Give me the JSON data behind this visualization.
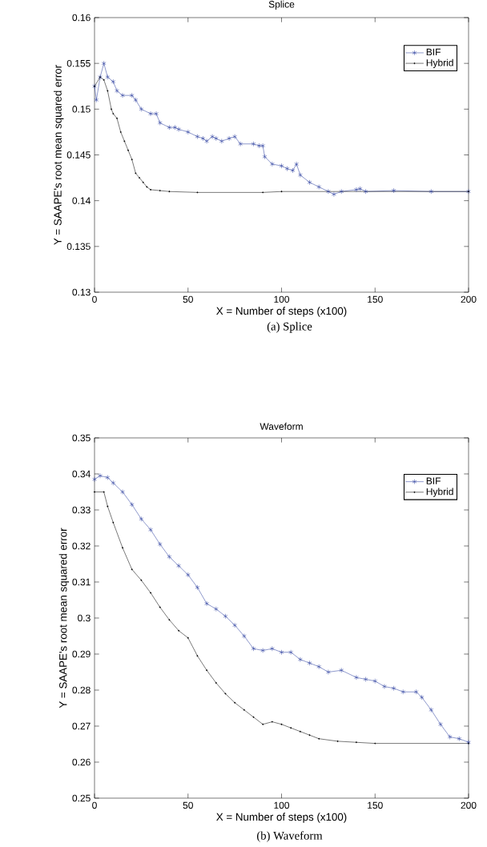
{
  "chart_data": [
    {
      "type": "line",
      "title": "Splice",
      "xlabel": "X = Number of steps (x100)",
      "ylabel": "Y = SAAPE's root mean squared error",
      "annotations": [
        "(a) Splice"
      ],
      "xlim": [
        0,
        200
      ],
      "ylim": [
        0.13,
        0.16
      ],
      "xticks": [
        0,
        50,
        100,
        150,
        200
      ],
      "yticks": [
        0.13,
        0.135,
        0.14,
        0.145,
        0.15,
        0.155,
        0.16
      ],
      "legend": "top right",
      "line_style": "solid",
      "series": [
        {
          "name": "BIF",
          "color": "#2b3f9e",
          "marker": "cross",
          "x": [
            0,
            1,
            3,
            5,
            7,
            10,
            12,
            15,
            20,
            22,
            25,
            30,
            33,
            35,
            40,
            43,
            45,
            50,
            55,
            58,
            60,
            63,
            65,
            68,
            72,
            75,
            78,
            85,
            88,
            90,
            91,
            95,
            100,
            103,
            106,
            108,
            110,
            115,
            120,
            125,
            128,
            132,
            140,
            142,
            145,
            160,
            180,
            200
          ],
          "values": [
            0.1525,
            0.151,
            0.1535,
            0.155,
            0.1535,
            0.153,
            0.152,
            0.1515,
            0.1515,
            0.151,
            0.15,
            0.1495,
            0.1495,
            0.1485,
            0.148,
            0.148,
            0.1478,
            0.1475,
            0.147,
            0.1468,
            0.1465,
            0.147,
            0.1468,
            0.1465,
            0.1468,
            0.147,
            0.1462,
            0.1462,
            0.146,
            0.146,
            0.1448,
            0.144,
            0.1438,
            0.1435,
            0.1433,
            0.144,
            0.1428,
            0.142,
            0.1415,
            0.141,
            0.1407,
            0.141,
            0.1412,
            0.1413,
            0.141,
            0.1411,
            0.141,
            0.141
          ]
        },
        {
          "name": "Hybrid",
          "color": "#000000",
          "marker": "circle",
          "x": [
            0,
            3,
            5,
            7,
            9,
            10,
            12,
            14,
            16,
            18,
            20,
            22,
            24,
            26,
            28,
            30,
            35,
            40,
            55,
            90,
            100,
            200
          ],
          "values": [
            0.1525,
            0.1535,
            0.1532,
            0.152,
            0.15,
            0.1495,
            0.149,
            0.1475,
            0.1465,
            0.1455,
            0.1445,
            0.143,
            0.1425,
            0.142,
            0.1415,
            0.1412,
            0.1411,
            0.141,
            0.1409,
            0.1409,
            0.141,
            0.141
          ]
        }
      ]
    },
    {
      "type": "line",
      "title": "Waveform",
      "xlabel": "X = Number of steps (x100)",
      "ylabel": "Y = SAAPE's root mean squared error",
      "annotations": [
        "(b) Waveform"
      ],
      "xlim": [
        0,
        200
      ],
      "ylim": [
        0.25,
        0.35
      ],
      "xticks": [
        0,
        50,
        100,
        150,
        200
      ],
      "yticks": [
        0.25,
        0.26,
        0.27,
        0.28,
        0.29,
        0.3,
        0.31,
        0.32,
        0.33,
        0.34,
        0.35
      ],
      "legend": "top right",
      "line_style": "solid",
      "series": [
        {
          "name": "BIF",
          "color": "#2b3f9e",
          "marker": "cross",
          "x": [
            0,
            3,
            7,
            10,
            15,
            20,
            25,
            30,
            35,
            40,
            45,
            50,
            55,
            60,
            65,
            70,
            75,
            80,
            85,
            90,
            95,
            100,
            105,
            110,
            115,
            120,
            125,
            132,
            140,
            145,
            150,
            155,
            160,
            165,
            172,
            175,
            180,
            185,
            190,
            195,
            200
          ],
          "values": [
            0.3385,
            0.3395,
            0.339,
            0.3375,
            0.335,
            0.3315,
            0.3275,
            0.3245,
            0.3205,
            0.317,
            0.3145,
            0.312,
            0.3085,
            0.304,
            0.3025,
            0.3005,
            0.298,
            0.295,
            0.2915,
            0.291,
            0.2915,
            0.2905,
            0.2905,
            0.2885,
            0.2875,
            0.2865,
            0.285,
            0.2855,
            0.2835,
            0.283,
            0.2825,
            0.281,
            0.2805,
            0.2795,
            0.2795,
            0.278,
            0.2745,
            0.2705,
            0.267,
            0.2665,
            0.2655
          ]
        },
        {
          "name": "Hybrid",
          "color": "#000000",
          "marker": "circle",
          "x": [
            0,
            5,
            7,
            10,
            15,
            20,
            25,
            30,
            35,
            40,
            45,
            50,
            55,
            60,
            65,
            70,
            75,
            80,
            85,
            90,
            95,
            100,
            105,
            110,
            115,
            120,
            130,
            140,
            150,
            200
          ],
          "values": [
            0.335,
            0.335,
            0.331,
            0.3265,
            0.3195,
            0.3135,
            0.3105,
            0.307,
            0.303,
            0.2995,
            0.2965,
            0.2945,
            0.2895,
            0.2855,
            0.282,
            0.279,
            0.2765,
            0.2745,
            0.2725,
            0.2705,
            0.2712,
            0.2705,
            0.2695,
            0.2685,
            0.2675,
            0.2665,
            0.2658,
            0.2655,
            0.2652,
            0.2652
          ]
        }
      ]
    }
  ]
}
